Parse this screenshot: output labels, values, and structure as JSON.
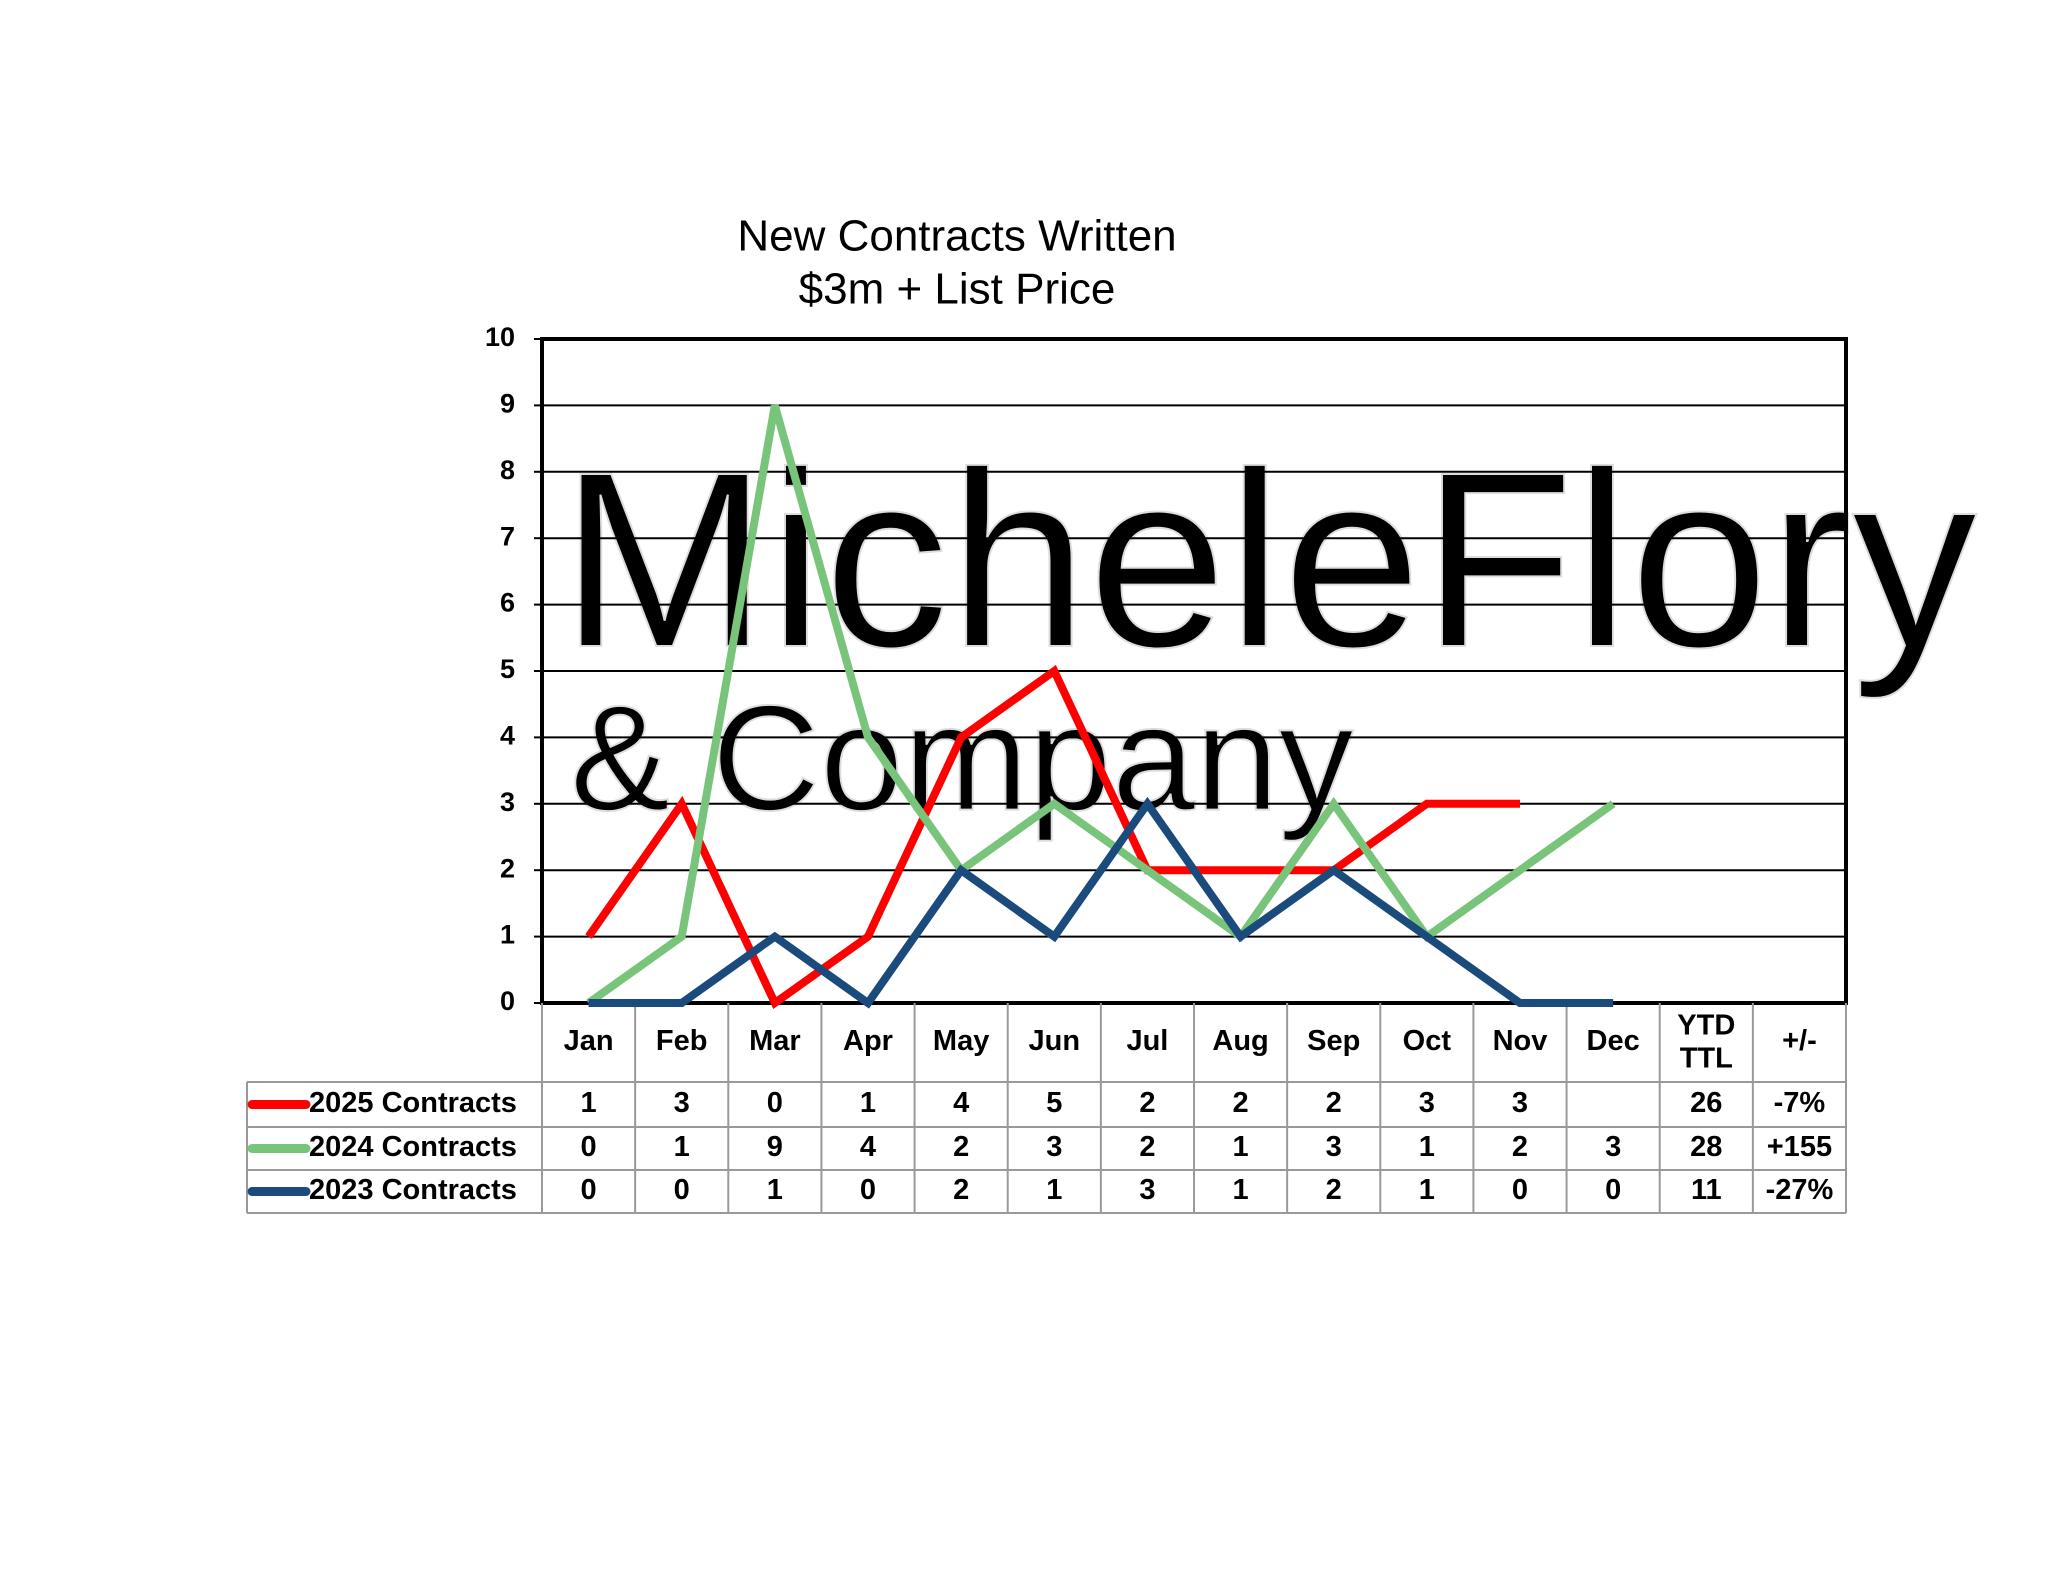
{
  "chart_data": {
    "type": "line",
    "title": "New Contracts Written",
    "subtitle": "$3m + List Price",
    "watermark": [
      "MicheleFlory",
      "& Company"
    ],
    "categories": [
      "Jan",
      "Feb",
      "Mar",
      "Apr",
      "May",
      "Jun",
      "Jul",
      "Aug",
      "Sep",
      "Oct",
      "Nov",
      "Dec"
    ],
    "extra_columns": [
      "YTD TTL",
      "+/-"
    ],
    "ylim": [
      0,
      10
    ],
    "yticks": [
      0,
      1,
      2,
      3,
      4,
      5,
      6,
      7,
      8,
      9,
      10
    ],
    "grid": true,
    "series": [
      {
        "name": "2025 Contracts",
        "color": "#ff0000",
        "values": [
          1,
          3,
          0,
          1,
          4,
          5,
          2,
          2,
          2,
          3,
          3,
          null
        ],
        "total": 26,
        "change": "-7%"
      },
      {
        "name": "2024 Contracts",
        "color": "#77c47a",
        "values": [
          0,
          1,
          9,
          4,
          2,
          3,
          2,
          1,
          3,
          1,
          2,
          3
        ],
        "total": 28,
        "change": "+155"
      },
      {
        "name": "2023 Contracts",
        "color": "#1b4a7c",
        "values": [
          0,
          0,
          1,
          0,
          2,
          1,
          3,
          1,
          2,
          1,
          0,
          0
        ],
        "total": 11,
        "change": "-27%"
      }
    ]
  }
}
